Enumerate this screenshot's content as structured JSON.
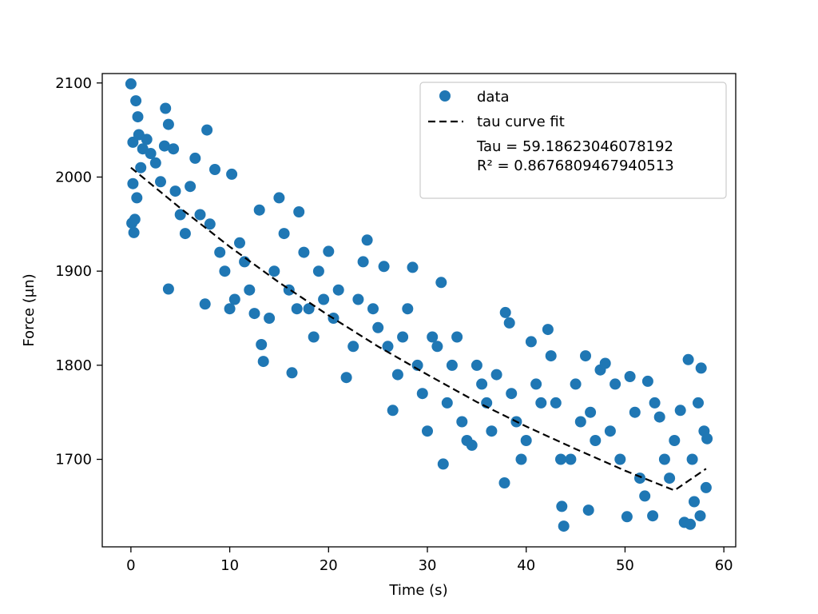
{
  "chart_data": {
    "type": "scatter",
    "title": "",
    "xlabel": "Time (s)",
    "ylabel": "Force (μn)",
    "xlim": [
      -2.9,
      61.2
    ],
    "ylim": [
      1607,
      2110
    ],
    "x_ticks": [
      0,
      10,
      20,
      30,
      40,
      50,
      60
    ],
    "y_ticks": [
      1700,
      1800,
      1900,
      2000,
      2100
    ],
    "grid": false,
    "legend_position": "upper right",
    "series": [
      {
        "name": "data",
        "kind": "scatter",
        "color": "#1f77b4",
        "points": [
          [
            0.0,
            2099
          ],
          [
            0.2,
            2037
          ],
          [
            0.5,
            2081
          ],
          [
            0.7,
            2064
          ],
          [
            0.2,
            1993
          ],
          [
            0.1,
            1951
          ],
          [
            0.3,
            1941
          ],
          [
            0.8,
            2045
          ],
          [
            1.2,
            2030
          ],
          [
            1.6,
            2040
          ],
          [
            0.6,
            1978
          ],
          [
            0.4,
            1955
          ],
          [
            1.0,
            2010
          ],
          [
            2.0,
            2025
          ],
          [
            3.5,
            2073
          ],
          [
            3.8,
            2056
          ],
          [
            3.4,
            2033
          ],
          [
            4.3,
            2030
          ],
          [
            3.8,
            1881
          ],
          [
            2.5,
            2015
          ],
          [
            3.0,
            1995
          ],
          [
            4.5,
            1985
          ],
          [
            5.0,
            1960
          ],
          [
            5.5,
            1940
          ],
          [
            6.5,
            2020
          ],
          [
            7.7,
            2050
          ],
          [
            8.5,
            2008
          ],
          [
            10.2,
            2003
          ],
          [
            6.0,
            1990
          ],
          [
            7.0,
            1960
          ],
          [
            7.5,
            1865
          ],
          [
            8.0,
            1950
          ],
          [
            9.0,
            1920
          ],
          [
            9.5,
            1900
          ],
          [
            10.0,
            1860
          ],
          [
            10.5,
            1870
          ],
          [
            11.0,
            1930
          ],
          [
            11.5,
            1910
          ],
          [
            12.0,
            1880
          ],
          [
            12.5,
            1855
          ],
          [
            13.0,
            1965
          ],
          [
            13.2,
            1822
          ],
          [
            13.4,
            1804
          ],
          [
            14.0,
            1850
          ],
          [
            14.5,
            1900
          ],
          [
            15.0,
            1978
          ],
          [
            15.5,
            1940
          ],
          [
            16.0,
            1880
          ],
          [
            16.3,
            1792
          ],
          [
            16.8,
            1860
          ],
          [
            17.0,
            1963
          ],
          [
            17.5,
            1920
          ],
          [
            18.0,
            1860
          ],
          [
            18.5,
            1830
          ],
          [
            19.0,
            1900
          ],
          [
            19.5,
            1870
          ],
          [
            20.0,
            1921
          ],
          [
            20.5,
            1850
          ],
          [
            21.0,
            1880
          ],
          [
            21.8,
            1787
          ],
          [
            22.5,
            1820
          ],
          [
            23.0,
            1870
          ],
          [
            23.5,
            1910
          ],
          [
            23.9,
            1933
          ],
          [
            24.5,
            1860
          ],
          [
            25.0,
            1840
          ],
          [
            25.6,
            1905
          ],
          [
            26.0,
            1820
          ],
          [
            26.5,
            1752
          ],
          [
            27.0,
            1790
          ],
          [
            27.5,
            1830
          ],
          [
            28.0,
            1860
          ],
          [
            28.5,
            1904
          ],
          [
            29.0,
            1800
          ],
          [
            29.5,
            1770
          ],
          [
            30.0,
            1730
          ],
          [
            30.5,
            1830
          ],
          [
            31.0,
            1820
          ],
          [
            31.4,
            1888
          ],
          [
            31.6,
            1695
          ],
          [
            32.0,
            1760
          ],
          [
            32.5,
            1800
          ],
          [
            33.0,
            1830
          ],
          [
            33.5,
            1740
          ],
          [
            34.0,
            1720
          ],
          [
            34.5,
            1715
          ],
          [
            35.0,
            1800
          ],
          [
            35.5,
            1780
          ],
          [
            36.0,
            1760
          ],
          [
            36.5,
            1730
          ],
          [
            37.0,
            1790
          ],
          [
            37.8,
            1675
          ],
          [
            37.9,
            1856
          ],
          [
            38.3,
            1845
          ],
          [
            38.5,
            1770
          ],
          [
            39.0,
            1740
          ],
          [
            39.5,
            1700
          ],
          [
            40.0,
            1720
          ],
          [
            40.5,
            1825
          ],
          [
            41.0,
            1780
          ],
          [
            41.5,
            1760
          ],
          [
            42.2,
            1838
          ],
          [
            42.5,
            1810
          ],
          [
            43.0,
            1760
          ],
          [
            43.5,
            1700
          ],
          [
            43.6,
            1650
          ],
          [
            43.8,
            1629
          ],
          [
            44.5,
            1700
          ],
          [
            45.0,
            1780
          ],
          [
            45.5,
            1740
          ],
          [
            46.0,
            1810
          ],
          [
            46.3,
            1646
          ],
          [
            46.5,
            1750
          ],
          [
            47.0,
            1720
          ],
          [
            47.5,
            1795
          ],
          [
            48.0,
            1802
          ],
          [
            48.5,
            1730
          ],
          [
            49.0,
            1780
          ],
          [
            49.5,
            1700
          ],
          [
            50.2,
            1639
          ],
          [
            50.5,
            1788
          ],
          [
            51.0,
            1750
          ],
          [
            51.5,
            1680
          ],
          [
            52.0,
            1661
          ],
          [
            52.3,
            1783
          ],
          [
            52.8,
            1640
          ],
          [
            53.0,
            1760
          ],
          [
            53.5,
            1745
          ],
          [
            54.0,
            1700
          ],
          [
            54.5,
            1680
          ],
          [
            55.0,
            1720
          ],
          [
            55.6,
            1752
          ],
          [
            56.0,
            1633
          ],
          [
            56.4,
            1806
          ],
          [
            56.8,
            1700
          ],
          [
            57.0,
            1655
          ],
          [
            57.4,
            1760
          ],
          [
            57.7,
            1797
          ],
          [
            58.0,
            1730
          ],
          [
            58.2,
            1670
          ],
          [
            58.3,
            1722
          ],
          [
            57.6,
            1640
          ],
          [
            56.6,
            1631
          ]
        ]
      },
      {
        "name": "tau curve fit",
        "kind": "line",
        "color": "#000000",
        "style": "dashed",
        "x": [
          0,
          5,
          10,
          15,
          20,
          25,
          30,
          35,
          40,
          45,
          50,
          55,
          58.2
        ],
        "y": [
          2010,
          1967,
          1926,
          1888,
          1853,
          1820,
          1790,
          1761,
          1735,
          1711,
          1688,
          1667,
          1690
        ]
      }
    ],
    "annotations": [
      "Tau = 59.18623046078192",
      "R² = 0.8676809467940513"
    ]
  }
}
